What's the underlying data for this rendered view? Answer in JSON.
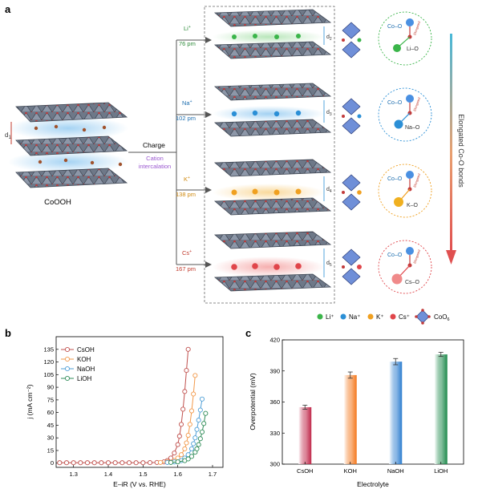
{
  "panel_a": {
    "label": "a",
    "left_material": "CoOOH",
    "left_spacing": "d",
    "left_spacing_sub": "1",
    "charge_label": "Charge",
    "intercalation_label": [
      "Cation",
      "intercalation"
    ],
    "cations": [
      {
        "ion": "Li",
        "radius": "76 pm",
        "spacing": "d",
        "spacing_sub": "2",
        "bond_cation": "Li–O",
        "color": "#3bb54a"
      },
      {
        "ion": "Na",
        "radius": "102 pm",
        "spacing": "d",
        "spacing_sub": "3",
        "bond_cation": "Na–O",
        "color": "#2b8fd6"
      },
      {
        "ion": "K",
        "radius": "138 pm",
        "spacing": "d",
        "spacing_sub": "4",
        "bond_cation": "K–O",
        "color": "#f0a020"
      },
      {
        "ion": "Cs",
        "radius": "167 pm",
        "spacing": "d",
        "spacing_sub": "5",
        "bond_cation": "Cs–O",
        "color": "#e0454a"
      }
    ],
    "bond_co": "Co–O",
    "elongated_small": "Elongated",
    "arrow_label": "Elongated Co-O bonds",
    "legend": [
      "Li⁺",
      "Na⁺",
      "K⁺",
      "Cs⁺"
    ],
    "legend_co": "CoO",
    "legend_co_sub": "6"
  },
  "panel_b": {
    "label": "b",
    "ylabel": "j (mA cm⁻²)",
    "xlabel": "E–iR (V vs. RHE)"
  },
  "panel_c": {
    "label": "c",
    "ylabel": "Overpotential (mV)",
    "xlabel": "Electrolyte"
  },
  "chart_data": [
    {
      "type": "line",
      "panel": "b",
      "xlabel": "E–iR (V vs. RHE)",
      "ylabel": "j (mA cm⁻²)",
      "xlim": [
        1.25,
        1.73
      ],
      "ylim": [
        -5,
        150
      ],
      "xticks": [
        1.3,
        1.4,
        1.5,
        1.6,
        1.7
      ],
      "yticks": [
        0,
        15,
        30,
        45,
        60,
        75,
        90,
        105,
        120,
        135
      ],
      "legend_position": "top-left",
      "series": [
        {
          "name": "CsOH",
          "color": "#c0504d",
          "x": [
            1.26,
            1.28,
            1.3,
            1.32,
            1.34,
            1.36,
            1.38,
            1.4,
            1.42,
            1.44,
            1.46,
            1.48,
            1.5,
            1.52,
            1.54,
            1.56,
            1.57,
            1.58,
            1.59,
            1.6,
            1.605,
            1.61,
            1.615,
            1.62,
            1.625,
            1.63
          ],
          "y": [
            0.5,
            0.5,
            0.5,
            0.5,
            0.5,
            0.5,
            0.5,
            0.5,
            0.5,
            0.5,
            0.5,
            0.5,
            0.5,
            0.6,
            0.8,
            1.5,
            3,
            6,
            12,
            22,
            32,
            46,
            64,
            85,
            110,
            135
          ]
        },
        {
          "name": "KOH",
          "color": "#f2994a",
          "x": [
            1.55,
            1.57,
            1.59,
            1.6,
            1.61,
            1.62,
            1.625,
            1.63,
            1.635,
            1.64,
            1.645,
            1.65
          ],
          "y": [
            0.8,
            1.5,
            3,
            6,
            10,
            17,
            24,
            33,
            46,
            62,
            82,
            104
          ]
        },
        {
          "name": "NaOH",
          "color": "#4f9fd6",
          "x": [
            1.57,
            1.59,
            1.61,
            1.62,
            1.63,
            1.64,
            1.645,
            1.65,
            1.655,
            1.66,
            1.665,
            1.67
          ],
          "y": [
            0.8,
            1.5,
            3,
            6,
            10,
            17,
            23,
            30,
            40,
            51,
            63,
            76
          ]
        },
        {
          "name": "LiOH",
          "color": "#2e8b57",
          "x": [
            1.58,
            1.6,
            1.62,
            1.63,
            1.64,
            1.65,
            1.655,
            1.66,
            1.665,
            1.67,
            1.675,
            1.68
          ],
          "y": [
            0.8,
            1.5,
            3,
            5,
            8,
            13,
            17,
            22,
            29,
            37,
            47,
            59
          ]
        }
      ]
    },
    {
      "type": "bar",
      "panel": "c",
      "xlabel": "Electrolyte",
      "ylabel": "Overpotential (mV)",
      "categories": [
        "CsOH",
        "KOH",
        "NaOH",
        "LiOH"
      ],
      "values": [
        355,
        386,
        399,
        406
      ],
      "errors": [
        2,
        3,
        3,
        2
      ],
      "ylim": [
        300,
        420
      ],
      "yticks": [
        300,
        330,
        360,
        390,
        420
      ],
      "colors": [
        "#c0284a",
        "#f47a20",
        "#2f7fd0",
        "#1f8a4c"
      ]
    }
  ]
}
